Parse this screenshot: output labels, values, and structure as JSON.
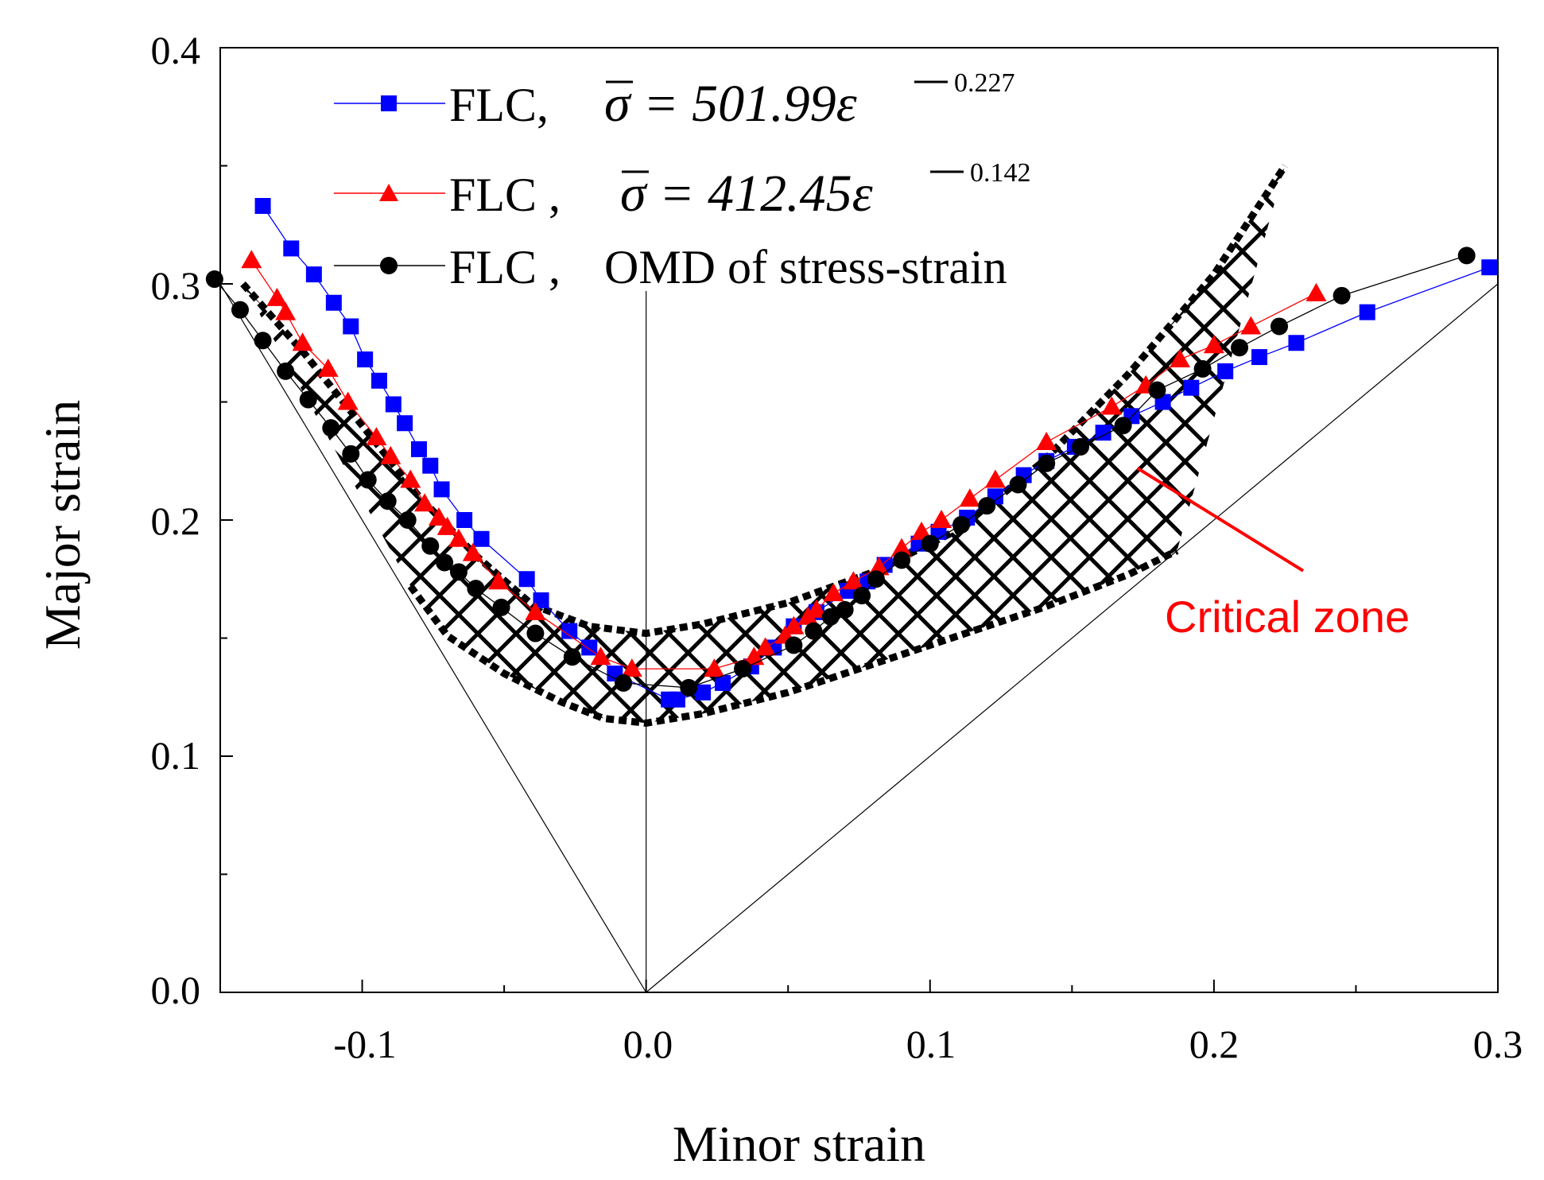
{
  "chart_data": {
    "type": "line",
    "title": "",
    "xlabel": "Minor strain",
    "ylabel": "Major strain",
    "xlim": [
      -0.15,
      0.3
    ],
    "ylim": [
      0.0,
      0.4
    ],
    "xticks": [
      -0.1,
      0.0,
      0.1,
      0.2,
      0.3
    ],
    "xtick_labels": [
      "-0.1",
      "0.0",
      "0.1",
      "0.2",
      "0.3"
    ],
    "yticks": [
      0.0,
      0.1,
      0.2,
      0.3,
      0.4
    ],
    "ytick_labels": [
      "0.0",
      "0.1",
      "0.2",
      "0.3",
      "0.4"
    ],
    "grid": false,
    "legend_position": "top-left",
    "series": [
      {
        "name": "FLC, σ̄ = 501.99ε̄^0.227",
        "legend_prefix": "FLC,",
        "equation": "σ = 501.99ε",
        "exponent": "0.227",
        "color": "#0000ff",
        "marker": "square",
        "x": [
          -0.135,
          -0.125,
          -0.117,
          -0.11,
          -0.104,
          -0.099,
          -0.094,
          -0.089,
          -0.085,
          -0.08,
          -0.076,
          -0.072,
          -0.064,
          -0.058,
          -0.042,
          -0.037,
          -0.027,
          -0.02,
          -0.011,
          0.008,
          0.011,
          0.02,
          0.027,
          0.037,
          0.045,
          0.052,
          0.06,
          0.071,
          0.078,
          0.084,
          0.096,
          0.103,
          0.113,
          0.123,
          0.133,
          0.141,
          0.151,
          0.161,
          0.171,
          0.182,
          0.192,
          0.204,
          0.216,
          0.229,
          0.254,
          0.297
        ],
        "y": [
          0.333,
          0.315,
          0.304,
          0.292,
          0.282,
          0.268,
          0.259,
          0.249,
          0.241,
          0.23,
          0.223,
          0.213,
          0.2,
          0.192,
          0.175,
          0.166,
          0.153,
          0.146,
          0.135,
          0.124,
          0.124,
          0.127,
          0.131,
          0.138,
          0.146,
          0.155,
          0.161,
          0.17,
          0.174,
          0.181,
          0.19,
          0.195,
          0.201,
          0.21,
          0.219,
          0.225,
          0.231,
          0.237,
          0.244,
          0.25,
          0.256,
          0.263,
          0.269,
          0.275,
          0.288,
          0.307
        ]
      },
      {
        "name": "FLC , σ̄ = 412.45ε̄^0.142",
        "legend_prefix": "FLC ,",
        "equation": "σ = 412.45ε",
        "exponent": "0.142",
        "color": "#ff0000",
        "marker": "triangle",
        "x": [
          -0.139,
          -0.13,
          -0.127,
          -0.121,
          -0.112,
          -0.105,
          -0.095,
          -0.09,
          -0.083,
          -0.078,
          -0.073,
          -0.07,
          -0.066,
          -0.061,
          -0.052,
          -0.039,
          -0.016,
          -0.005,
          0.024,
          0.038,
          0.042,
          0.049,
          0.052,
          0.057,
          0.06,
          0.066,
          0.073,
          0.082,
          0.09,
          0.097,
          0.104,
          0.114,
          0.123,
          0.141,
          0.164,
          0.176,
          0.188,
          0.2,
          0.213,
          0.236
        ],
        "y": [
          0.31,
          0.294,
          0.288,
          0.275,
          0.264,
          0.25,
          0.235,
          0.227,
          0.217,
          0.207,
          0.201,
          0.197,
          0.192,
          0.186,
          0.174,
          0.161,
          0.142,
          0.137,
          0.137,
          0.142,
          0.146,
          0.151,
          0.155,
          0.159,
          0.162,
          0.169,
          0.174,
          0.18,
          0.188,
          0.195,
          0.2,
          0.209,
          0.217,
          0.233,
          0.248,
          0.257,
          0.268,
          0.274,
          0.282,
          0.296
        ]
      },
      {
        "name": "FLC , OMD of stress-strain",
        "legend_prefix": "FLC ,",
        "equation": "OMD of stress-strain",
        "exponent": "",
        "color": "#000000",
        "marker": "circle",
        "x": [
          -0.152,
          -0.143,
          -0.135,
          -0.127,
          -0.119,
          -0.111,
          -0.104,
          -0.098,
          -0.091,
          -0.084,
          -0.076,
          -0.071,
          -0.066,
          -0.06,
          -0.051,
          -0.039,
          -0.026,
          -0.008,
          0.015,
          0.034,
          0.052,
          0.059,
          0.065,
          0.07,
          0.076,
          0.081,
          0.09,
          0.1,
          0.111,
          0.12,
          0.131,
          0.141,
          0.153,
          0.168,
          0.18,
          0.196,
          0.209,
          0.223,
          0.245,
          0.289
        ],
        "y": [
          0.302,
          0.289,
          0.276,
          0.263,
          0.251,
          0.239,
          0.228,
          0.217,
          0.208,
          0.2,
          0.189,
          0.182,
          0.178,
          0.171,
          0.163,
          0.152,
          0.142,
          0.131,
          0.129,
          0.137,
          0.147,
          0.153,
          0.159,
          0.162,
          0.168,
          0.175,
          0.183,
          0.19,
          0.198,
          0.206,
          0.215,
          0.224,
          0.231,
          0.24,
          0.255,
          0.264,
          0.273,
          0.282,
          0.295,
          0.312
        ]
      }
    ],
    "reference_lines": [
      {
        "name": "uniaxial-tension-line",
        "x": [
          -0.15,
          0.0
        ],
        "y": [
          0.3,
          0.0
        ]
      },
      {
        "name": "biaxial-tension-line",
        "x": [
          0.0,
          0.3
        ],
        "y": [
          0.0,
          0.3
        ]
      },
      {
        "name": "plane-strain-line",
        "x": [
          0.0,
          0.0
        ],
        "y": [
          0.0,
          0.297
        ]
      }
    ],
    "critical_zone": {
      "upper_boundary": {
        "x": [
          -0.142,
          -0.12,
          -0.1,
          -0.08,
          -0.06,
          -0.04,
          -0.02,
          0.0,
          0.02,
          0.05,
          0.08,
          0.11,
          0.14,
          0.17,
          0.2,
          0.225
        ],
        "y": [
          0.3,
          0.27,
          0.24,
          0.21,
          0.185,
          0.164,
          0.155,
          0.152,
          0.156,
          0.165,
          0.178,
          0.196,
          0.225,
          0.262,
          0.304,
          0.35
        ]
      },
      "lower_boundary": {
        "x": [
          -0.083,
          -0.07,
          -0.05,
          -0.03,
          -0.015,
          0.0,
          0.02,
          0.05,
          0.08,
          0.11,
          0.14,
          0.17,
          0.187
        ],
        "y": [
          0.172,
          0.151,
          0.135,
          0.123,
          0.116,
          0.114,
          0.118,
          0.127,
          0.139,
          0.151,
          0.163,
          0.177,
          0.187
        ]
      }
    },
    "annotations": [
      {
        "text": "Critical zone",
        "color": "#ff0000",
        "x": 0.23,
        "y": 0.16,
        "arrow_to": {
          "x": 0.173,
          "y": 0.222
        }
      }
    ]
  }
}
